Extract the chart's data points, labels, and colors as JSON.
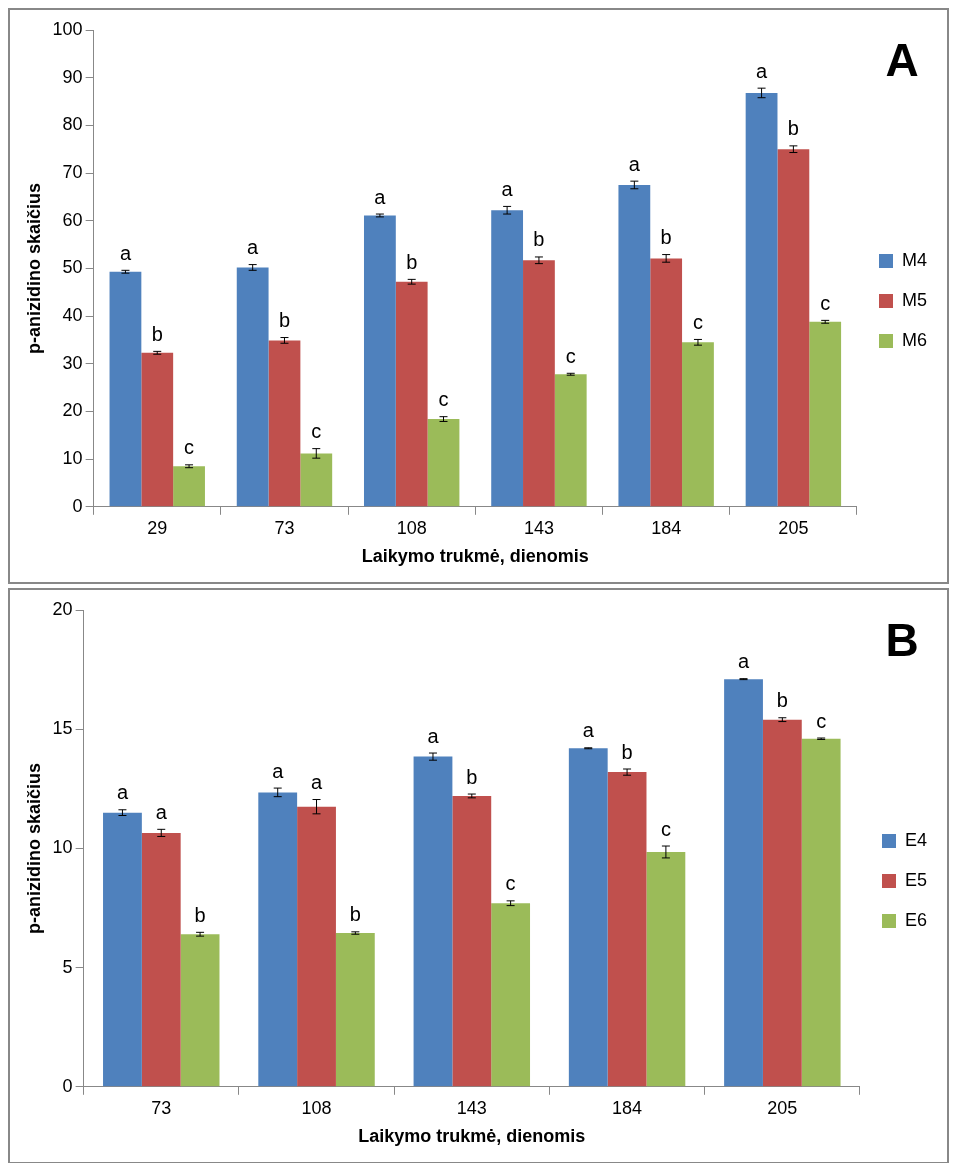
{
  "chart_data": [
    {
      "type": "bar",
      "categories": [
        "29",
        "73",
        "108",
        "143",
        "184",
        "205"
      ],
      "xlabel": "Laikymo trukmė, dienomis",
      "ylabel": "p-anizidino skaičius",
      "ylim": [
        0,
        100
      ],
      "yticks": [
        0,
        10,
        20,
        30,
        40,
        50,
        60,
        70,
        80,
        90,
        100
      ],
      "grid": false,
      "legend": "right",
      "annotations": [
        "A"
      ],
      "series": [
        {
          "name": "M4",
          "color": "#4f81bd",
          "values": [
            49.3,
            50.2,
            61.1,
            62.2,
            67.5,
            86.8
          ],
          "errors": [
            0.3,
            0.6,
            0.3,
            0.8,
            0.8,
            1.0
          ],
          "value_labels": [
            "a",
            "a",
            "a",
            "a",
            "a",
            "a"
          ]
        },
        {
          "name": "M5",
          "color": "#c0504d",
          "values": [
            32.3,
            34.9,
            47.2,
            51.7,
            52.1,
            75.0
          ],
          "errors": [
            0.3,
            0.6,
            0.5,
            0.7,
            0.8,
            0.7
          ],
          "value_labels": [
            "b",
            "b",
            "b",
            "b",
            "b",
            "b"
          ]
        },
        {
          "name": "M6",
          "color": "#9bbb59",
          "values": [
            8.5,
            11.2,
            18.4,
            27.8,
            34.5,
            38.8
          ],
          "errors": [
            0.3,
            1.0,
            0.5,
            0.2,
            0.6,
            0.3
          ],
          "value_labels": [
            "c",
            "c",
            "c",
            "c",
            "c",
            "c"
          ]
        }
      ]
    },
    {
      "type": "bar",
      "categories": [
        "73",
        "108",
        "143",
        "184",
        "205"
      ],
      "xlabel": "Laikymo trukmė, dienomis",
      "ylabel": "p-anizidino skaičius",
      "ylim": [
        0,
        20
      ],
      "yticks": [
        0,
        5,
        10,
        15,
        20
      ],
      "grid": false,
      "legend": "right",
      "annotations": [
        "B"
      ],
      "series": [
        {
          "name": "E4",
          "color": "#4f81bd",
          "values": [
            11.5,
            12.35,
            13.85,
            14.2,
            17.1
          ],
          "errors": [
            0.12,
            0.18,
            0.15,
            0.02,
            0.02
          ],
          "value_labels": [
            "a",
            "a",
            "a",
            "a",
            "a"
          ]
        },
        {
          "name": "E5",
          "color": "#c0504d",
          "values": [
            10.65,
            11.75,
            12.2,
            13.2,
            15.4
          ],
          "errors": [
            0.15,
            0.3,
            0.08,
            0.13,
            0.08
          ],
          "value_labels": [
            "a",
            "a",
            "b",
            "b",
            "b"
          ]
        },
        {
          "name": "E6",
          "color": "#9bbb59",
          "values": [
            6.4,
            6.45,
            7.7,
            9.85,
            14.6
          ],
          "errors": [
            0.08,
            0.05,
            0.1,
            0.25,
            0.03
          ],
          "value_labels": [
            "b",
            "b",
            "c",
            "c",
            "c"
          ]
        }
      ]
    }
  ]
}
